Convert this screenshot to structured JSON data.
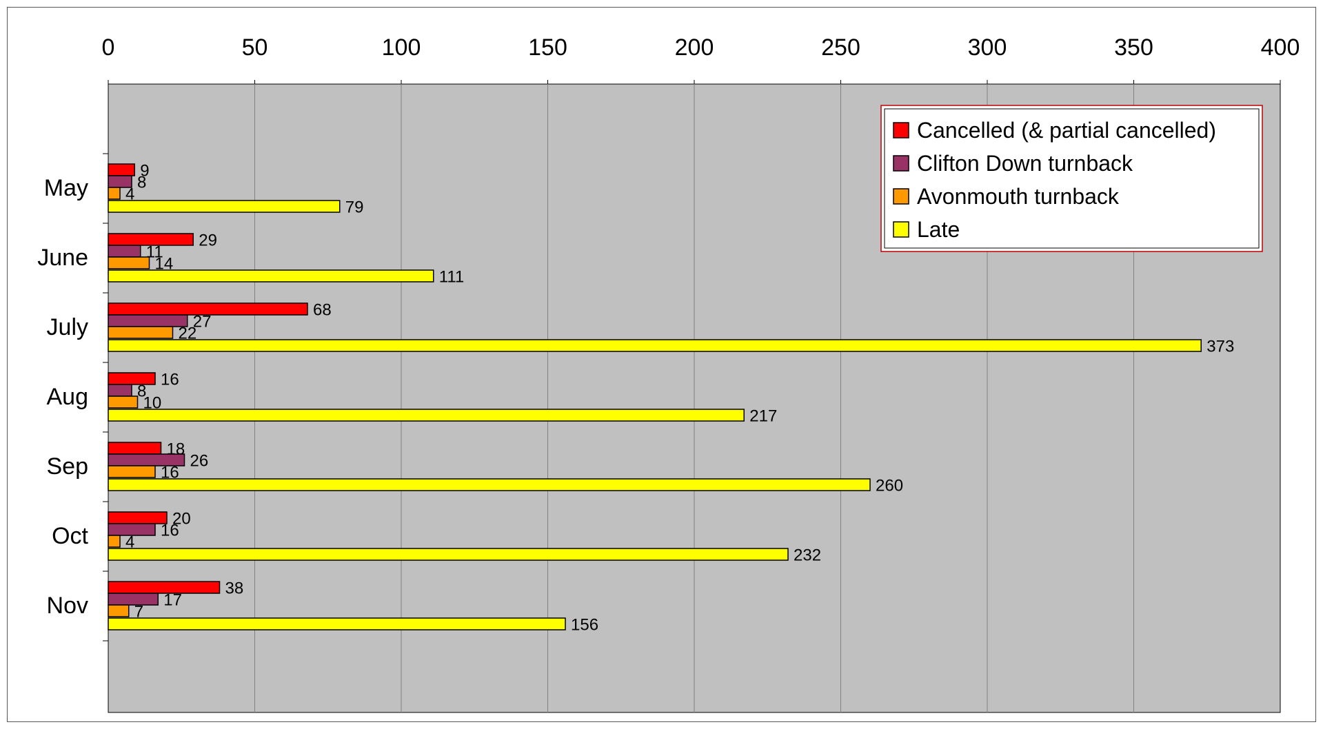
{
  "chart_data": {
    "type": "bar",
    "orientation": "horizontal",
    "categories": [
      "May",
      "June",
      "July",
      "Aug",
      "Sep",
      "Oct",
      "Nov"
    ],
    "series": [
      {
        "name": "Cancelled (& partial cancelled)",
        "color": "#ff0000",
        "values": [
          9,
          29,
          68,
          16,
          18,
          20,
          38
        ]
      },
      {
        "name": "Clifton Down turnback",
        "color": "#993366",
        "values": [
          8,
          11,
          27,
          8,
          26,
          16,
          17
        ]
      },
      {
        "name": "Avonmouth turnback",
        "color": "#ff9900",
        "values": [
          4,
          14,
          22,
          10,
          16,
          4,
          7
        ]
      },
      {
        "name": "Late",
        "color": "#ffff00",
        "values": [
          79,
          111,
          373,
          217,
          260,
          232,
          156
        ]
      }
    ],
    "xlim": [
      0,
      400
    ],
    "xticks": [
      0,
      50,
      100,
      150,
      200,
      250,
      300,
      350,
      400
    ],
    "x_axis_position": "top",
    "grid": true,
    "legend": "top-right",
    "data_labels": true,
    "plot_background": "#c0c0c0",
    "legend_border_color": "#c00000"
  }
}
